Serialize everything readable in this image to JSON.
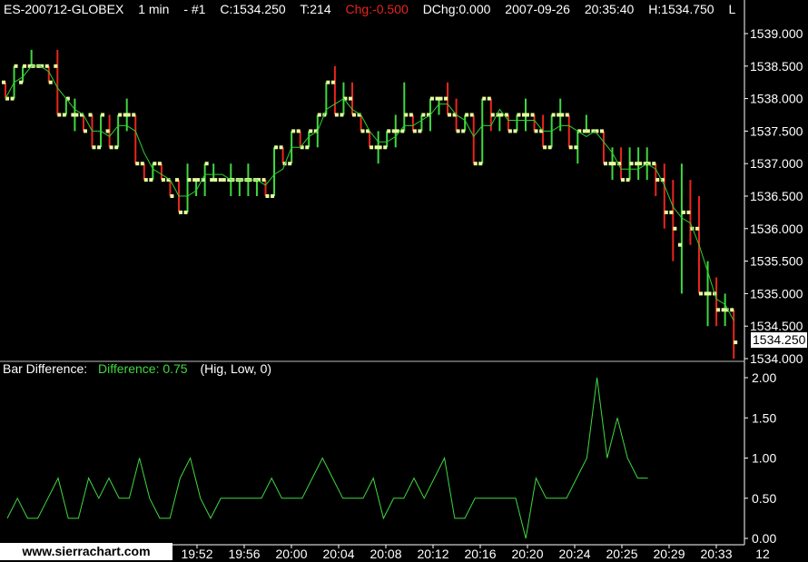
{
  "header": {
    "symbol": "ES-200712-GLOBEX",
    "interval": "1 min",
    "chart_number": "- #1",
    "close": "C:1534.250",
    "ticks": "T:214",
    "change": "Chg:-0.500",
    "daily_change": "DChg:0.000",
    "date": "2007-09-26",
    "time": "20:35:40",
    "high": "H:1534.750",
    "truncated": "L"
  },
  "subgraph": {
    "label": "Bar Difference:",
    "value_text": "Difference: 0.75",
    "params": "(Hig, Low, 0)"
  },
  "current_price_label": "1534.250",
  "footer": {
    "url": "www.sierrachart.com"
  },
  "colors": {
    "up": "#3fd83f",
    "down": "#e8251c",
    "tick": "#e8ffa0",
    "ma": "#2fd22f",
    "difference": "#3fd83f",
    "axis": "#ffffff",
    "change_text": "#e8251c"
  },
  "chart_data": [
    {
      "type": "ohlc",
      "ylim": [
        1534.0,
        1539.0
      ],
      "price_ticks": [
        "1539.000",
        "1538.500",
        "1538.000",
        "1537.500",
        "1537.000",
        "1536.500",
        "1536.000",
        "1535.500",
        "1535.000",
        "1534.500",
        "1534.000"
      ],
      "time_labels": [
        "19:52",
        "19:56",
        "20:00",
        "20:04",
        "20:08",
        "20:12",
        "20:16",
        "20:20",
        "20:24",
        "20:25",
        "20:29",
        "20:33"
      ],
      "day_label": "12",
      "bars": [
        {
          "o": 1538.25,
          "h": 1538.25,
          "l": 1538.0,
          "c": 1538.0
        },
        {
          "o": 1538.0,
          "h": 1538.5,
          "l": 1538.0,
          "c": 1538.5
        },
        {
          "o": 1538.25,
          "h": 1538.5,
          "l": 1538.25,
          "c": 1538.5
        },
        {
          "o": 1538.5,
          "h": 1538.75,
          "l": 1538.5,
          "c": 1538.5
        },
        {
          "o": 1538.5,
          "h": 1538.5,
          "l": 1538.5,
          "c": 1538.5
        },
        {
          "o": 1538.5,
          "h": 1538.5,
          "l": 1538.25,
          "c": 1538.25
        },
        {
          "o": 1538.5,
          "h": 1538.75,
          "l": 1537.75,
          "c": 1537.75
        },
        {
          "o": 1537.75,
          "h": 1538.0,
          "l": 1537.75,
          "c": 1538.0
        },
        {
          "o": 1537.75,
          "h": 1538.0,
          "l": 1537.5,
          "c": 1537.75
        },
        {
          "o": 1537.75,
          "h": 1537.75,
          "l": 1537.5,
          "c": 1537.5
        },
        {
          "o": 1537.75,
          "h": 1537.75,
          "l": 1537.25,
          "c": 1537.25
        },
        {
          "o": 1537.25,
          "h": 1537.75,
          "l": 1537.25,
          "c": 1537.75
        },
        {
          "o": 1537.5,
          "h": 1537.75,
          "l": 1537.25,
          "c": 1537.25
        },
        {
          "o": 1537.25,
          "h": 1537.75,
          "l": 1537.25,
          "c": 1537.75
        },
        {
          "o": 1537.75,
          "h": 1538.0,
          "l": 1537.5,
          "c": 1537.75
        },
        {
          "o": 1537.75,
          "h": 1537.75,
          "l": 1537.0,
          "c": 1537.0
        },
        {
          "o": 1537.0,
          "h": 1537.0,
          "l": 1536.75,
          "c": 1536.75
        },
        {
          "o": 1536.75,
          "h": 1537.0,
          "l": 1536.75,
          "c": 1537.0
        },
        {
          "o": 1537.0,
          "h": 1537.0,
          "l": 1536.75,
          "c": 1536.75
        },
        {
          "o": 1536.75,
          "h": 1536.75,
          "l": 1536.5,
          "c": 1536.5
        },
        {
          "o": 1536.75,
          "h": 1536.75,
          "l": 1536.25,
          "c": 1536.25
        },
        {
          "o": 1536.25,
          "h": 1537.0,
          "l": 1536.25,
          "c": 1536.75
        },
        {
          "o": 1536.75,
          "h": 1536.75,
          "l": 1536.5,
          "c": 1536.75
        },
        {
          "o": 1536.75,
          "h": 1537.0,
          "l": 1536.5,
          "c": 1537.0
        },
        {
          "o": 1536.75,
          "h": 1537.0,
          "l": 1536.75,
          "c": 1536.75
        },
        {
          "o": 1536.75,
          "h": 1536.75,
          "l": 1536.75,
          "c": 1536.75
        },
        {
          "o": 1536.75,
          "h": 1537.0,
          "l": 1536.5,
          "c": 1536.75
        },
        {
          "o": 1536.75,
          "h": 1536.75,
          "l": 1536.5,
          "c": 1536.75
        },
        {
          "o": 1536.75,
          "h": 1537.0,
          "l": 1536.5,
          "c": 1536.75
        },
        {
          "o": 1536.75,
          "h": 1536.75,
          "l": 1536.5,
          "c": 1536.75
        },
        {
          "o": 1536.75,
          "h": 1536.75,
          "l": 1536.5,
          "c": 1536.5
        },
        {
          "o": 1536.5,
          "h": 1537.25,
          "l": 1536.5,
          "c": 1537.25
        },
        {
          "o": 1537.25,
          "h": 1537.25,
          "l": 1537.0,
          "c": 1537.0
        },
        {
          "o": 1537.0,
          "h": 1537.5,
          "l": 1537.0,
          "c": 1537.5
        },
        {
          "o": 1537.5,
          "h": 1537.5,
          "l": 1537.25,
          "c": 1537.25
        },
        {
          "o": 1537.25,
          "h": 1537.5,
          "l": 1537.25,
          "c": 1537.5
        },
        {
          "o": 1537.5,
          "h": 1537.75,
          "l": 1537.25,
          "c": 1537.75
        },
        {
          "o": 1537.75,
          "h": 1538.25,
          "l": 1537.75,
          "c": 1538.25
        },
        {
          "o": 1538.25,
          "h": 1538.5,
          "l": 1537.75,
          "c": 1537.75
        },
        {
          "o": 1537.75,
          "h": 1538.25,
          "l": 1537.75,
          "c": 1538.0
        },
        {
          "o": 1538.0,
          "h": 1538.25,
          "l": 1537.75,
          "c": 1537.75
        },
        {
          "o": 1537.75,
          "h": 1537.75,
          "l": 1537.5,
          "c": 1537.5
        },
        {
          "o": 1537.5,
          "h": 1537.5,
          "l": 1537.25,
          "c": 1537.25
        },
        {
          "o": 1537.25,
          "h": 1537.5,
          "l": 1537.0,
          "c": 1537.25
        },
        {
          "o": 1537.25,
          "h": 1537.5,
          "l": 1537.25,
          "c": 1537.5
        },
        {
          "o": 1537.5,
          "h": 1537.75,
          "l": 1537.25,
          "c": 1537.5
        },
        {
          "o": 1537.5,
          "h": 1538.25,
          "l": 1537.5,
          "c": 1537.75
        },
        {
          "o": 1537.75,
          "h": 1537.75,
          "l": 1537.5,
          "c": 1537.5
        },
        {
          "o": 1537.5,
          "h": 1537.75,
          "l": 1537.5,
          "c": 1537.75
        },
        {
          "o": 1537.75,
          "h": 1538.0,
          "l": 1537.5,
          "c": 1538.0
        },
        {
          "o": 1538.0,
          "h": 1538.0,
          "l": 1537.75,
          "c": 1538.0
        },
        {
          "o": 1538.0,
          "h": 1538.25,
          "l": 1537.75,
          "c": 1537.75
        },
        {
          "o": 1537.75,
          "h": 1538.0,
          "l": 1537.5,
          "c": 1537.5
        },
        {
          "o": 1537.5,
          "h": 1537.75,
          "l": 1537.5,
          "c": 1537.75
        },
        {
          "o": 1537.75,
          "h": 1537.75,
          "l": 1537.0,
          "c": 1537.0
        },
        {
          "o": 1537.0,
          "h": 1538.0,
          "l": 1537.0,
          "c": 1538.0
        },
        {
          "o": 1538.0,
          "h": 1538.0,
          "l": 1537.5,
          "c": 1537.75
        },
        {
          "o": 1537.75,
          "h": 1537.75,
          "l": 1537.5,
          "c": 1537.75
        },
        {
          "o": 1537.75,
          "h": 1537.75,
          "l": 1537.5,
          "c": 1537.5
        },
        {
          "o": 1537.5,
          "h": 1537.75,
          "l": 1537.5,
          "c": 1537.75
        },
        {
          "o": 1537.75,
          "h": 1538.0,
          "l": 1537.5,
          "c": 1537.75
        },
        {
          "o": 1537.75,
          "h": 1537.75,
          "l": 1537.5,
          "c": 1537.5
        },
        {
          "o": 1537.5,
          "h": 1537.75,
          "l": 1537.25,
          "c": 1537.25
        },
        {
          "o": 1537.25,
          "h": 1537.75,
          "l": 1537.25,
          "c": 1537.75
        },
        {
          "o": 1537.75,
          "h": 1538.0,
          "l": 1537.5,
          "c": 1537.75
        },
        {
          "o": 1537.75,
          "h": 1537.75,
          "l": 1537.25,
          "c": 1537.25
        },
        {
          "o": 1537.25,
          "h": 1537.5,
          "l": 1537.0,
          "c": 1537.5
        },
        {
          "o": 1537.5,
          "h": 1537.75,
          "l": 1537.5,
          "c": 1537.5
        },
        {
          "o": 1537.5,
          "h": 1537.5,
          "l": 1537.5,
          "c": 1537.5
        },
        {
          "o": 1537.5,
          "h": 1537.5,
          "l": 1537.0,
          "c": 1537.0
        },
        {
          "o": 1537.0,
          "h": 1537.25,
          "l": 1536.75,
          "c": 1537.0
        },
        {
          "o": 1537.0,
          "h": 1537.25,
          "l": 1536.75,
          "c": 1536.75
        },
        {
          "o": 1536.75,
          "h": 1537.25,
          "l": 1536.75,
          "c": 1537.0
        },
        {
          "o": 1537.0,
          "h": 1537.25,
          "l": 1536.75,
          "c": 1537.0
        },
        {
          "o": 1537.0,
          "h": 1537.25,
          "l": 1536.75,
          "c": 1537.0
        },
        {
          "o": 1537.0,
          "h": 1537.0,
          "l": 1536.5,
          "c": 1536.75
        },
        {
          "o": 1536.75,
          "h": 1537.0,
          "l": 1536.0,
          "c": 1536.25
        },
        {
          "o": 1536.25,
          "h": 1536.75,
          "l": 1535.5,
          "c": 1536.0
        },
        {
          "o": 1535.75,
          "h": 1537.0,
          "l": 1535.0,
          "c": 1536.25
        },
        {
          "o": 1536.25,
          "h": 1536.75,
          "l": 1535.75,
          "c": 1536.0
        },
        {
          "o": 1536.0,
          "h": 1536.5,
          "l": 1535.0,
          "c": 1535.0
        },
        {
          "o": 1535.0,
          "h": 1535.5,
          "l": 1534.5,
          "c": 1535.0
        },
        {
          "o": 1535.0,
          "h": 1535.25,
          "l": 1534.5,
          "c": 1534.75
        },
        {
          "o": 1534.75,
          "h": 1535.0,
          "l": 1534.5,
          "c": 1534.75
        },
        {
          "o": 1534.75,
          "h": 1534.75,
          "l": 1534.0,
          "c": 1534.25
        }
      ]
    },
    {
      "type": "line",
      "title": "Bar Difference",
      "ylim": [
        0.0,
        2.0
      ],
      "y_ticks": [
        "2.00",
        "1.50",
        "1.00",
        "0.50",
        "0.00"
      ],
      "values": [
        0.25,
        0.5,
        0.25,
        0.25,
        0.5,
        0.75,
        0.25,
        0.25,
        0.75,
        0.5,
        0.75,
        0.5,
        0.5,
        1.0,
        0.5,
        0.25,
        0.25,
        0.75,
        1.0,
        0.5,
        0.25,
        0.5,
        0.5,
        0.5,
        0.5,
        0.5,
        0.75,
        0.5,
        0.5,
        0.5,
        0.75,
        1.0,
        0.75,
        0.5,
        0.5,
        0.5,
        0.75,
        0.25,
        0.5,
        0.5,
        0.75,
        0.5,
        0.75,
        1.0,
        0.25,
        0.25,
        0.5,
        0.5,
        0.5,
        0.5,
        0.5,
        0.0,
        0.75,
        0.5,
        0.5,
        0.5,
        0.75,
        1.0,
        2.0,
        1.0,
        1.5,
        1.0,
        0.75,
        0.75
      ]
    }
  ]
}
